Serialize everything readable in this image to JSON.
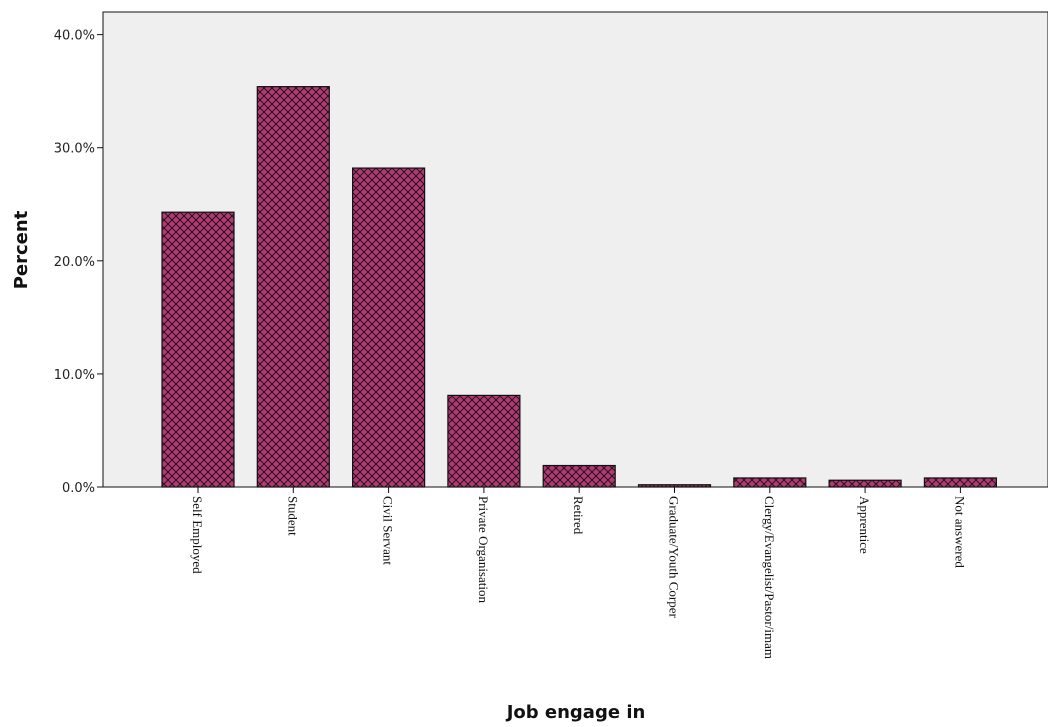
{
  "chart_data": {
    "type": "bar",
    "title": "",
    "xlabel": "Job engage in",
    "ylabel": "Percent",
    "categories": [
      "Self Employed",
      "Student",
      "Civil Servant",
      "Private Organisation",
      "Retired",
      "Graduate/Youth Corper",
      "Clergy/Evangelist/Pastor/imam",
      "Apprentice",
      "Not answered"
    ],
    "values": [
      24.3,
      35.4,
      28.2,
      8.1,
      1.9,
      0.2,
      0.8,
      0.6,
      0.8
    ],
    "ylim": [
      0,
      42
    ],
    "yticks": [
      0,
      10,
      20,
      30,
      40
    ],
    "ytick_labels": [
      "0.0%",
      "10.0%",
      "20.0%",
      "30.0%",
      "40.0%"
    ],
    "grid": false,
    "bar_color": "#b03a72",
    "hatch_color": "#2a1020",
    "plot_background": "#efefef"
  }
}
